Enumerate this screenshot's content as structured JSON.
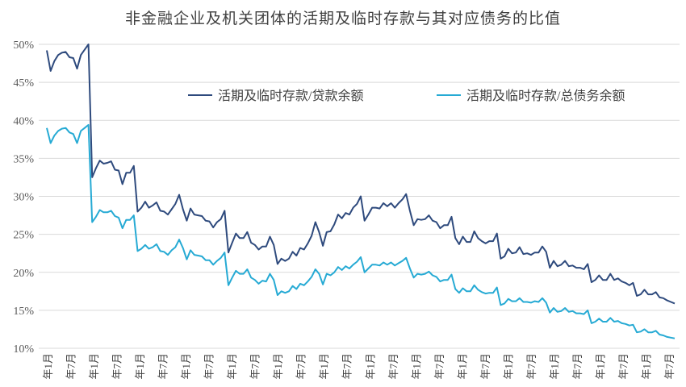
{
  "chart_data": {
    "type": "line",
    "title": "非金融企业及机关团体的活期及临时存款与其对应债务的比值",
    "xlabel": "",
    "ylabel": "",
    "ylim": [
      0.1,
      0.5
    ],
    "y_ticks": [
      "10%",
      "15%",
      "20%",
      "25%",
      "30%",
      "35%",
      "40%",
      "45%",
      "50%"
    ],
    "x_tick_labels": [
      "年1月",
      "年7月",
      "年1月",
      "年7月",
      "年1月",
      "年7月",
      "年1月",
      "年7月",
      "年1月",
      "年7月",
      "年1月",
      "年7月",
      "年1月",
      "年7月",
      "年1月",
      "年7月",
      "年1月",
      "年7月",
      "年1月",
      "年7月",
      "年1月",
      "年7月",
      "年1月",
      "年7月",
      "年1月",
      "年7月",
      "年1月",
      "年7月"
    ],
    "grid": true,
    "legend_position": "top",
    "series": [
      {
        "name": "活期及临时存款/贷款余额",
        "color": "#2E4A7D",
        "values": [
          0.492,
          0.465,
          0.478,
          0.486,
          0.489,
          0.49,
          0.483,
          0.482,
          0.468,
          0.486,
          0.493,
          0.5,
          0.325,
          0.337,
          0.347,
          0.343,
          0.344,
          0.346,
          0.335,
          0.334,
          0.316,
          0.331,
          0.331,
          0.34,
          0.28,
          0.285,
          0.293,
          0.285,
          0.288,
          0.292,
          0.281,
          0.28,
          0.276,
          0.283,
          0.29,
          0.302,
          0.283,
          0.268,
          0.284,
          0.276,
          0.275,
          0.274,
          0.268,
          0.267,
          0.259,
          0.266,
          0.27,
          0.281,
          0.226,
          0.239,
          0.251,
          0.245,
          0.245,
          0.253,
          0.239,
          0.236,
          0.23,
          0.234,
          0.234,
          0.247,
          0.236,
          0.211,
          0.218,
          0.215,
          0.218,
          0.227,
          0.222,
          0.232,
          0.23,
          0.238,
          0.248,
          0.266,
          0.253,
          0.235,
          0.253,
          0.254,
          0.263,
          0.276,
          0.271,
          0.278,
          0.276,
          0.285,
          0.29,
          0.3,
          0.268,
          0.276,
          0.285,
          0.285,
          0.284,
          0.291,
          0.287,
          0.291,
          0.285,
          0.291,
          0.296,
          0.303,
          0.281,
          0.262,
          0.27,
          0.269,
          0.27,
          0.275,
          0.268,
          0.266,
          0.258,
          0.262,
          0.262,
          0.273,
          0.245,
          0.237,
          0.247,
          0.24,
          0.24,
          0.254,
          0.245,
          0.241,
          0.238,
          0.241,
          0.241,
          0.251,
          0.218,
          0.221,
          0.231,
          0.225,
          0.226,
          0.233,
          0.224,
          0.225,
          0.223,
          0.226,
          0.226,
          0.234,
          0.227,
          0.206,
          0.215,
          0.208,
          0.21,
          0.215,
          0.208,
          0.209,
          0.206,
          0.206,
          0.204,
          0.211,
          0.187,
          0.19,
          0.196,
          0.19,
          0.19,
          0.198,
          0.19,
          0.192,
          0.188,
          0.186,
          0.183,
          0.186,
          0.169,
          0.171,
          0.177,
          0.171,
          0.171,
          0.174,
          0.167,
          0.166,
          0.163,
          0.161,
          0.159
        ]
      },
      {
        "name": "活期及临时存款/总债务余额",
        "color": "#26AAD4",
        "values": [
          0.39,
          0.37,
          0.38,
          0.386,
          0.389,
          0.39,
          0.384,
          0.382,
          0.37,
          0.386,
          0.39,
          0.394,
          0.266,
          0.273,
          0.282,
          0.279,
          0.279,
          0.281,
          0.274,
          0.272,
          0.258,
          0.269,
          0.269,
          0.275,
          0.228,
          0.231,
          0.236,
          0.231,
          0.233,
          0.237,
          0.228,
          0.227,
          0.223,
          0.229,
          0.233,
          0.243,
          0.232,
          0.217,
          0.229,
          0.223,
          0.222,
          0.221,
          0.216,
          0.216,
          0.21,
          0.215,
          0.219,
          0.226,
          0.183,
          0.193,
          0.202,
          0.198,
          0.198,
          0.204,
          0.193,
          0.19,
          0.185,
          0.189,
          0.188,
          0.198,
          0.19,
          0.17,
          0.175,
          0.173,
          0.175,
          0.182,
          0.178,
          0.185,
          0.183,
          0.188,
          0.194,
          0.204,
          0.198,
          0.184,
          0.198,
          0.196,
          0.2,
          0.207,
          0.203,
          0.208,
          0.205,
          0.21,
          0.214,
          0.22,
          0.2,
          0.205,
          0.21,
          0.21,
          0.209,
          0.213,
          0.21,
          0.213,
          0.209,
          0.212,
          0.215,
          0.219,
          0.205,
          0.193,
          0.198,
          0.197,
          0.198,
          0.201,
          0.196,
          0.194,
          0.188,
          0.19,
          0.19,
          0.197,
          0.178,
          0.173,
          0.179,
          0.175,
          0.175,
          0.183,
          0.177,
          0.174,
          0.172,
          0.173,
          0.173,
          0.18,
          0.157,
          0.159,
          0.165,
          0.162,
          0.162,
          0.166,
          0.161,
          0.161,
          0.16,
          0.162,
          0.161,
          0.166,
          0.16,
          0.147,
          0.153,
          0.148,
          0.149,
          0.153,
          0.148,
          0.149,
          0.146,
          0.146,
          0.145,
          0.15,
          0.133,
          0.135,
          0.139,
          0.135,
          0.135,
          0.14,
          0.135,
          0.136,
          0.133,
          0.132,
          0.13,
          0.131,
          0.121,
          0.122,
          0.125,
          0.121,
          0.121,
          0.123,
          0.118,
          0.117,
          0.115,
          0.114,
          0.113
        ]
      }
    ]
  }
}
